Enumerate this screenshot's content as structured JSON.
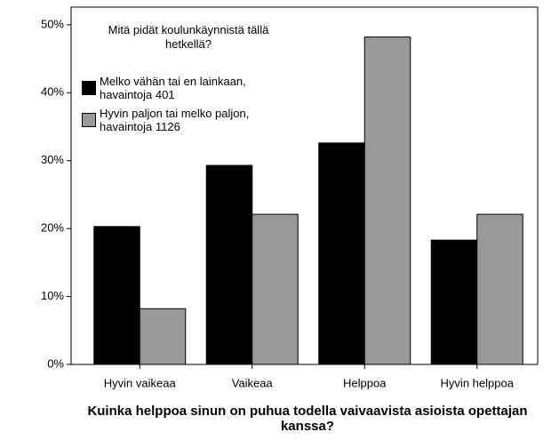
{
  "chart_data": {
    "type": "bar",
    "x_label": "Kuinka helppoa sinun on puhua todella vaivaavista asioista opettajan kanssa?",
    "legend_title": "Mitä pidät koulunkäynnistä tällä hetkellä?",
    "legend_position": "upper left",
    "categories": [
      "Hyvin vaikeaa",
      "Vaikeaa",
      "Helppoa",
      "Hyvin helppoa"
    ],
    "series": [
      {
        "name": "Melko vähän tai en lainkaan, havaintoja 401",
        "color": "#000000",
        "values": [
          20.3,
          29.3,
          32.6,
          18.3
        ]
      },
      {
        "name": "Hyvin paljon tai melko paljon, havaintoja 1126",
        "color": "#999999",
        "values": [
          8.2,
          22.1,
          48.2,
          22.1
        ]
      }
    ],
    "ylim": [
      0,
      52.6
    ],
    "yticks": [
      {
        "value": 0,
        "label": "0%"
      },
      {
        "value": 10,
        "label": "10%"
      },
      {
        "value": 20,
        "label": "20%"
      },
      {
        "value": 30,
        "label": "30%"
      },
      {
        "value": 40,
        "label": "40%"
      },
      {
        "value": 50,
        "label": "50%"
      }
    ]
  }
}
